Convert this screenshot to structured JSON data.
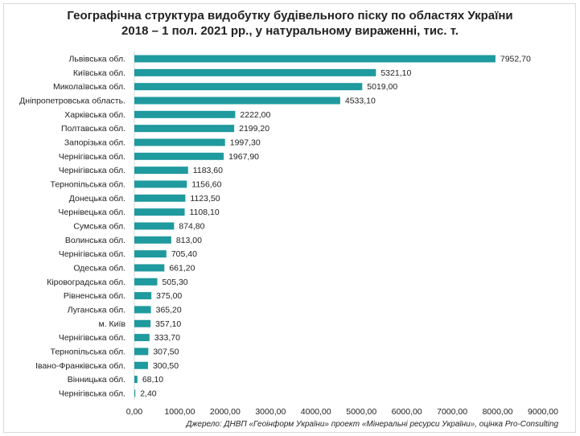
{
  "chart_data": {
    "type": "bar",
    "orientation": "horizontal",
    "title_line1": "Географічна структура видобутку будівельного піску по областях України",
    "title_line2": "2018 – 1 пол. 2021 рр., у натуральному вираженні, тис. т.",
    "categories": [
      "Львівська обл.",
      "Київська обл.",
      "Миколаївська обл.",
      "Дніпропетровська область.",
      "Харківська обл.",
      "Полтавська обл.",
      "Запорізька обл.",
      "Чернігівська обл.",
      "Чернігівська обл.",
      "Тернопільська обл.",
      "Донецька обл.",
      "Чернівецька обл.",
      "Сумська обл.",
      "Волинська обл.",
      "Чернігівська обл.",
      "Одеська обл.",
      "Кіровоградська обл.",
      "Рівненська обл.",
      "Луганська обл.",
      "м. Київ",
      "Чернігівська обл.",
      "Тернопільська обл.",
      "Івано-Франківська обл.",
      "Вінницька обл.",
      "Чернігівська обл."
    ],
    "values": [
      7952.7,
      5321.1,
      5019.0,
      4533.1,
      2222.0,
      2199.2,
      1997.3,
      1967.9,
      1183.6,
      1156.6,
      1123.5,
      1108.1,
      874.8,
      813.0,
      705.4,
      661.2,
      505.3,
      375.0,
      365.2,
      357.1,
      333.7,
      307.5,
      300.5,
      68.1,
      2.4
    ],
    "value_labels": [
      "7952,70",
      "5321,10",
      "5019,00",
      "4533,10",
      "2222,00",
      "2199,20",
      "1997,30",
      "1967,90",
      "1183,60",
      "1156,60",
      "1123,50",
      "1108,10",
      "874,80",
      "813,00",
      "705,40",
      "661,20",
      "505,30",
      "375,00",
      "365,20",
      "357,10",
      "333,70",
      "307,50",
      "300,50",
      "68,10",
      "2,40"
    ],
    "xlim": [
      0,
      9000
    ],
    "x_ticks": [
      0,
      1000,
      2000,
      3000,
      4000,
      5000,
      6000,
      7000,
      8000,
      9000
    ],
    "x_tick_labels": [
      "0,00",
      "1000,00",
      "2000,00",
      "3000,00",
      "4000,00",
      "5000,00",
      "6000,00",
      "7000,00",
      "8000,00",
      "9000,00"
    ],
    "bar_color": "#1f9a9e",
    "grid": false,
    "source": "Джерело: ДНВП «Геоінформ України» проект «Мінеральні ресурси України», оцінка Pro-Consulting"
  }
}
